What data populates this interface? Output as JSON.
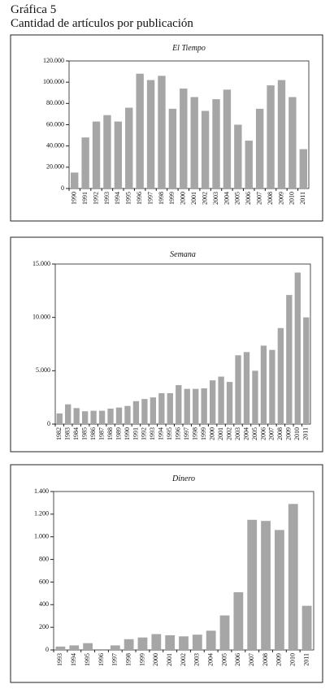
{
  "header": {
    "title": "Gráfica 5",
    "subtitle": "Cantidad de artículos por publicación"
  },
  "chart_data": [
    {
      "type": "bar",
      "title": "El Tiempo",
      "color": "#a6a6a6",
      "categories": [
        "1990",
        "1991",
        "1992",
        "1993",
        "1994",
        "1995",
        "1996",
        "1997",
        "1998",
        "1999",
        "2000",
        "2001",
        "2002",
        "2003",
        "2004",
        "2005",
        "2006",
        "2007",
        "2008",
        "2009",
        "2010",
        "2011"
      ],
      "values": [
        15000,
        48000,
        63000,
        69000,
        63000,
        76000,
        108000,
        102000,
        106000,
        75000,
        94000,
        86000,
        73000,
        84000,
        93000,
        60000,
        45000,
        75000,
        97000,
        102000,
        86000,
        37000
      ],
      "ylim": [
        0,
        120000
      ],
      "yticks": [
        0,
        {
          "value": 20000,
          "label": "20.000"
        },
        {
          "value": 40000,
          "label": "40.000"
        },
        {
          "value": 60000,
          "label": "60.000"
        },
        {
          "value": 80000,
          "label": "80.000"
        },
        {
          "value": 100000,
          "label": "100.000"
        },
        {
          "value": 120000,
          "label": "120.000"
        }
      ]
    },
    {
      "type": "bar",
      "title": "Semana",
      "color": "#a6a6a6",
      "categories": [
        "1982",
        "1983",
        "1984",
        "1985",
        "1986",
        "1987",
        "1988",
        "1989",
        "1990",
        "1991",
        "1992",
        "1993",
        "1994",
        "1995",
        "1996",
        "1997",
        "1998",
        "1999",
        "2000",
        "2001",
        "2002",
        "2003",
        "2004",
        "2005",
        "2006",
        "2007",
        "2008",
        "2009",
        "2010",
        "2011"
      ],
      "values": [
        1000,
        1850,
        1500,
        1200,
        1250,
        1250,
        1450,
        1550,
        1700,
        2150,
        2350,
        2500,
        2900,
        2900,
        3650,
        3300,
        3300,
        3350,
        4100,
        4450,
        3950,
        6450,
        6750,
        5000,
        7350,
        6950,
        9000,
        12100,
        14200,
        10000
      ],
      "ylim": [
        0,
        15000
      ],
      "yticks": [
        0,
        {
          "value": 5000,
          "label": "5.000"
        },
        {
          "value": 10000,
          "label": "10.000"
        },
        {
          "value": 15000,
          "label": "15.000"
        }
      ]
    },
    {
      "type": "bar",
      "title": "Dinero",
      "color": "#a6a6a6",
      "categories": [
        "1993",
        "1994",
        "1995",
        "1996",
        "1997",
        "1998",
        "1999",
        "2000",
        "2001",
        "2002",
        "2003",
        "2004",
        "2005",
        "2006",
        "2007",
        "2008",
        "2009",
        "2010",
        "2011"
      ],
      "values": [
        30,
        40,
        60,
        0,
        40,
        95,
        110,
        140,
        130,
        120,
        135,
        170,
        305,
        510,
        1150,
        1140,
        1060,
        1290,
        390
      ],
      "ylim": [
        0,
        1400
      ],
      "yticks": [
        0,
        200,
        400,
        600,
        800,
        {
          "value": 1000,
          "label": "1.000"
        },
        {
          "value": 1200,
          "label": "1.200"
        },
        {
          "value": 1400,
          "label": "1.400"
        }
      ]
    }
  ]
}
